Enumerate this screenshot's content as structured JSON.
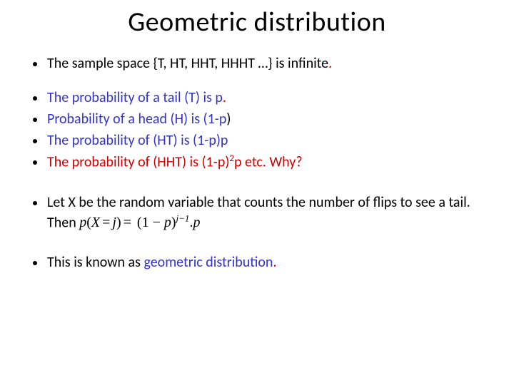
{
  "title": "Geometric distribution",
  "colors": {
    "blue": "#3333cc",
    "red": "#cc0000",
    "black": "#000000",
    "background": "#ffffff"
  },
  "typography": {
    "title_fontsize": 38,
    "body_fontsize": 20,
    "font_family": "Calibri"
  },
  "lines": {
    "l1_a": "The sample space {T, HT, HHT, HHHT …} is infinite",
    "l1_b": ".",
    "l2_a": "The probability of a tail (T) is p",
    "l2_b": ".",
    "l3_a": "Probability of a head (H) is (1-p",
    "l3_b": ")",
    "l4": "The probability of (HT) is (1-p)p",
    "l5_a": "The probability of (HHT) is (1-p)",
    "l5_sup": "2",
    "l5_b": "p etc.   Why?",
    "l6": "Let X be the random variable that counts the number of flips to see a tail. Then ",
    "l6_math_p": "p",
    "l6_math_lparen": "(",
    "l6_math_X": "X",
    "l6_math_eq": "=",
    "l6_math_j": "j",
    "l6_math_rparen": ")",
    "l6_math_eq2": "=",
    "l6_math_lp2": " (",
    "l6_math_one": "1 − ",
    "l6_math_p2": "p",
    "l6_math_rp2": ")",
    "l6_math_exp": "j−1",
    "l6_math_dot": ".",
    "l6_math_p3": "p",
    "l7_a": "This is known as ",
    "l7_b": "geometric distribution",
    "l7_c": "."
  }
}
